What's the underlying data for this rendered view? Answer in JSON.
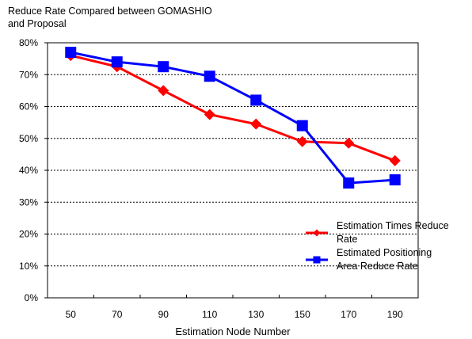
{
  "chart_data": {
    "type": "line",
    "title": "",
    "ylabel": "Reduce Rate Compared between GOMASHIO and Proposal",
    "xlabel": "Estimation Node Number",
    "categories": [
      "50",
      "70",
      "90",
      "110",
      "130",
      "150",
      "170",
      "190"
    ],
    "yticks": [
      "0%",
      "10%",
      "20%",
      "30%",
      "40%",
      "50%",
      "60%",
      "70%",
      "80%"
    ],
    "ylim": [
      0,
      80
    ],
    "grid": "horizontal dashed",
    "legend_position": "right-lower",
    "series": [
      {
        "name": "Estimation Times Reduce Rate",
        "name_lines": [
          "Estimation Times Reduce",
          "Rate"
        ],
        "color": "#ff0000",
        "marker": "diamond",
        "values": [
          76,
          72.5,
          65,
          57.5,
          54.5,
          49,
          48.5,
          43
        ]
      },
      {
        "name": "Estimated Positioning Area Reduce Rate",
        "name_lines": [
          "Estimated Positioning",
          "Area Reduce Rate"
        ],
        "color": "#0000ff",
        "marker": "square",
        "values": [
          77,
          74,
          72.5,
          69.5,
          62,
          54,
          36,
          37
        ]
      }
    ]
  }
}
